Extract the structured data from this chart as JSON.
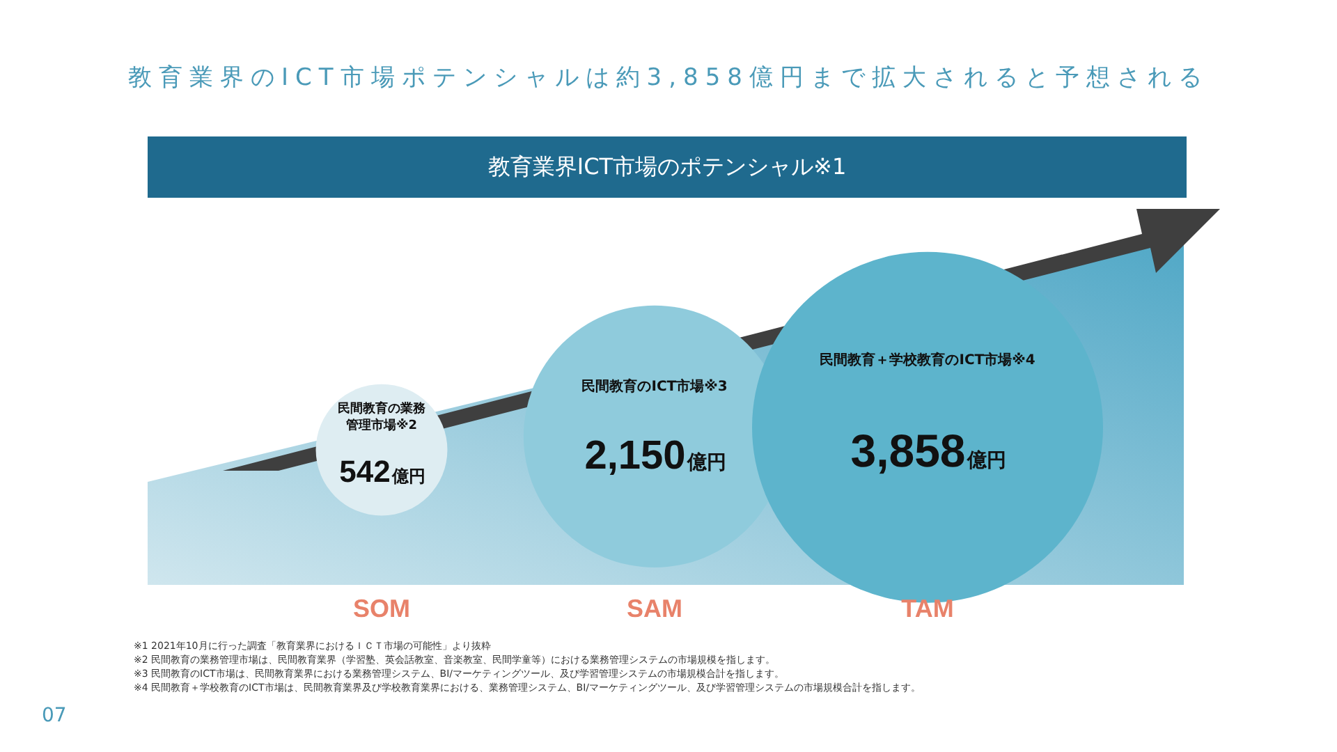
{
  "chart_data": {
    "type": "other",
    "title": "教育業界のICT市場ポテンシャルは約3,858億円まで拡大されると予想される",
    "subtitle": "教育業界ICT市場のポテンシャル※1",
    "categories": [
      "SOM",
      "SAM",
      "TAM"
    ],
    "values": [
      542,
      2150,
      3858
    ],
    "value_labels": [
      "542億円",
      "2,150億円",
      "3,858億円"
    ],
    "colors": [
      "#deedf2",
      "#8fcbdc",
      "#5db4cc"
    ],
    "annotations": [
      {
        "text": "民間教育の業務管理市場※2",
        "x": "SOM"
      },
      {
        "text": "民間教育のICT市場※3",
        "x": "SAM"
      },
      {
        "text": "民間教育＋学校教育のICT市場※4",
        "x": "TAM"
      },
      "※1 2021年10月に行った調査「教育業界におけるＩＣＴ市場の可能性」より抜粋",
      "※2 民間教育の業務管理市場は、民間教育業界（学習塾、英会話教室、音楽教室、民間学童等）における業務管理システムの市場規模を指します。",
      "※3 民間教育のICT市場は、民間教育業界における業務管理システム、BI/マーケティングツール、及び学習管理システムの市場規模合計を指します。",
      "※4 民間教育＋学校教育のICT市場は、民間教育業界及び学校教育業界における、業務管理システム、BI/マーケティングツール、及び学習管理システムの市場規模合計を指します。",
      "07"
    ]
  }
}
